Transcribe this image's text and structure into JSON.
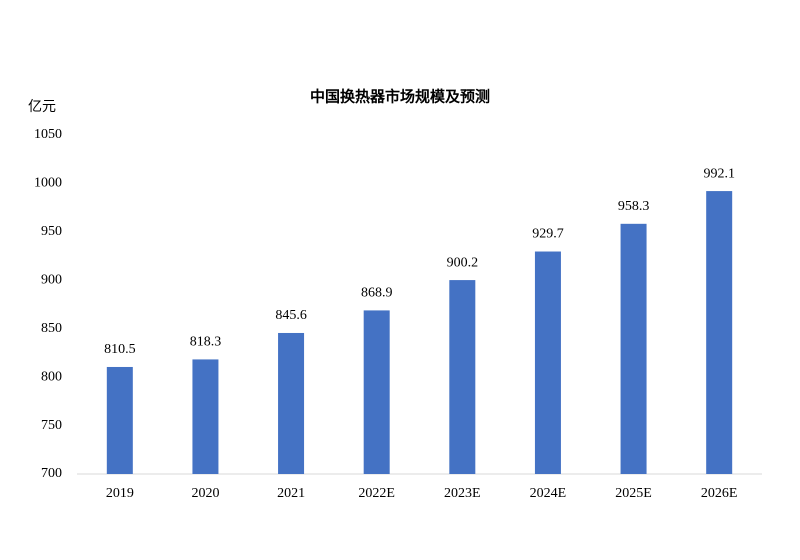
{
  "chart_data": {
    "type": "bar",
    "title": "中国换热器市场规模及预测",
    "y_label": "亿元",
    "categories": [
      "2019",
      "2020",
      "2021",
      "2022E",
      "2023E",
      "2024E",
      "2025E",
      "2026E"
    ],
    "values": [
      810.5,
      818.3,
      845.6,
      868.9,
      900.2,
      929.7,
      958.3,
      992.1
    ],
    "color": "#4472c4",
    "ylim": [
      700,
      1050
    ],
    "yticks": [
      700,
      750,
      800,
      850,
      900,
      950,
      1000,
      1050
    ],
    "grid": false
  }
}
